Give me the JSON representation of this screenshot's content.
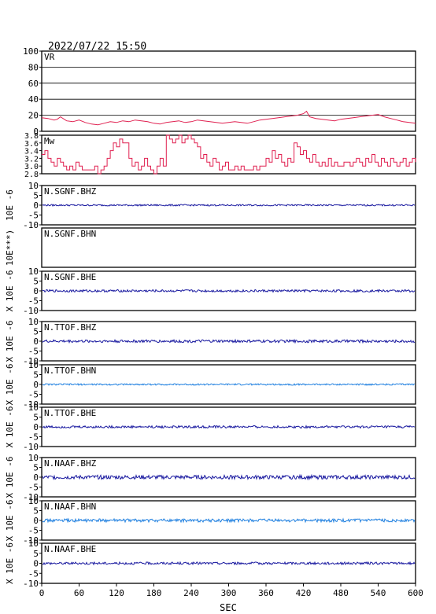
{
  "header": {
    "timestamp": "2022/07/22 15:50"
  },
  "x_axis": {
    "label": "SEC",
    "ticks": [
      "0",
      "60",
      "120",
      "180",
      "240",
      "300",
      "360",
      "420",
      "480",
      "540",
      "600"
    ],
    "range": [
      0,
      600
    ]
  },
  "colors": {
    "frame": "#000000",
    "vr": "#e02050",
    "mw": "#e02050",
    "dark_trace": "#1a1aa0",
    "light_trace": "#2080e0"
  },
  "chart_data": [
    {
      "type": "line",
      "panel_label": "VR",
      "ylim": [
        0,
        100
      ],
      "yticks": [
        "100",
        "80",
        "60",
        "40",
        "20",
        "0"
      ],
      "grid": true,
      "series": [
        {
          "x": [
            0,
            10,
            20,
            25,
            30,
            40,
            50,
            60,
            70,
            80,
            90,
            100,
            110,
            120,
            130,
            140,
            150,
            160,
            170,
            180,
            190,
            200,
            210,
            220,
            230,
            240,
            250,
            260,
            270,
            280,
            290,
            300,
            310,
            320,
            330,
            340,
            350,
            360,
            370,
            380,
            390,
            400,
            410,
            420,
            425,
            430,
            440,
            450,
            460,
            470,
            480,
            490,
            500,
            510,
            520,
            530,
            540,
            550,
            560,
            570,
            580,
            590,
            600
          ],
          "y": [
            17,
            16,
            14,
            15,
            18,
            13,
            12,
            14,
            11,
            9,
            8,
            10,
            12,
            11,
            13,
            12,
            14,
            13,
            12,
            10,
            9,
            11,
            12,
            13,
            11,
            12,
            14,
            13,
            12,
            11,
            10,
            11,
            12,
            11,
            10,
            12,
            14,
            15,
            16,
            17,
            18,
            19,
            20,
            22,
            25,
            18,
            16,
            15,
            14,
            13,
            15,
            16,
            17,
            18,
            19,
            20,
            21,
            18,
            16,
            14,
            12,
            11,
            10
          ]
        }
      ]
    },
    {
      "type": "line",
      "panel_label": "Mw",
      "ylim": [
        2.8,
        3.8
      ],
      "yticks": [
        "3.8",
        "3.6",
        "3.4",
        "3.2",
        "3.0",
        "2.8"
      ],
      "series": [
        {
          "x": [
            0,
            5,
            10,
            15,
            20,
            25,
            30,
            35,
            40,
            45,
            50,
            55,
            60,
            65,
            70,
            75,
            80,
            85,
            90,
            95,
            100,
            105,
            110,
            115,
            120,
            125,
            130,
            135,
            140,
            145,
            150,
            155,
            160,
            165,
            170,
            175,
            180,
            185,
            190,
            195,
            200,
            205,
            210,
            215,
            220,
            225,
            230,
            235,
            240,
            245,
            250,
            255,
            260,
            265,
            270,
            275,
            280,
            285,
            290,
            295,
            300,
            305,
            310,
            315,
            320,
            325,
            330,
            335,
            340,
            345,
            350,
            355,
            360,
            365,
            370,
            375,
            380,
            385,
            390,
            395,
            400,
            405,
            410,
            415,
            420,
            425,
            430,
            435,
            440,
            445,
            450,
            455,
            460,
            465,
            470,
            475,
            480,
            485,
            490,
            495,
            500,
            505,
            510,
            515,
            520,
            525,
            530,
            535,
            540,
            545,
            550,
            555,
            560,
            565,
            570,
            575,
            580,
            585,
            590,
            595,
            600
          ],
          "y": [
            3.3,
            3.4,
            3.2,
            3.1,
            3.0,
            3.2,
            3.1,
            3.0,
            2.9,
            3.0,
            2.9,
            3.1,
            3.0,
            2.9,
            2.9,
            2.9,
            2.9,
            3.0,
            2.8,
            2.9,
            3.0,
            3.2,
            3.4,
            3.6,
            3.5,
            3.7,
            3.6,
            3.6,
            3.2,
            3.0,
            3.1,
            2.9,
            3.0,
            3.2,
            3.0,
            2.9,
            2.8,
            3.0,
            3.2,
            3.0,
            3.8,
            3.7,
            3.6,
            3.7,
            3.8,
            3.6,
            3.7,
            3.8,
            3.7,
            3.6,
            3.5,
            3.2,
            3.3,
            3.1,
            3.0,
            3.2,
            3.1,
            2.9,
            3.0,
            3.1,
            2.9,
            2.9,
            3.0,
            2.9,
            3.0,
            2.9,
            2.9,
            2.9,
            3.0,
            2.9,
            3.0,
            3.0,
            3.2,
            3.1,
            3.4,
            3.2,
            3.3,
            3.1,
            3.0,
            3.2,
            3.1,
            3.6,
            3.5,
            3.3,
            3.4,
            3.2,
            3.1,
            3.3,
            3.1,
            3.0,
            3.1,
            3.0,
            3.2,
            3.0,
            3.1,
            3.0,
            3.0,
            3.1,
            3.1,
            3.0,
            3.1,
            3.2,
            3.1,
            3.0,
            3.2,
            3.1,
            3.3,
            3.1,
            3.0,
            3.2,
            3.1,
            3.0,
            3.2,
            3.1,
            3.0,
            3.1,
            3.2,
            3.0,
            3.1,
            3.2,
            3.1
          ]
        }
      ]
    },
    {
      "type": "line",
      "panel_label": "N.SGNF.BHZ",
      "unit_label": "10E -6",
      "ylim": [
        -10,
        10
      ],
      "yticks": [
        "10",
        "5",
        "0",
        "-5",
        "-10"
      ],
      "trace": "dark",
      "noise_amplitude": 0.4,
      "has_data": true
    },
    {
      "type": "line",
      "panel_label": "N.SGNF.BHN",
      "unit_label": "10E***)",
      "ylim": null,
      "yticks": [],
      "trace": "none",
      "noise_amplitude": 0,
      "has_data": false
    },
    {
      "type": "line",
      "panel_label": "N.SGNF.BHE",
      "unit_label": "X 10E -6",
      "ylim": [
        -10,
        10
      ],
      "yticks": [
        "10",
        "5",
        "0",
        "-5",
        "-10"
      ],
      "trace": "dark",
      "noise_amplitude": 0.6,
      "has_data": true
    },
    {
      "type": "line",
      "panel_label": "N.TTOF.BHZ",
      "unit_label": "X 10E -6",
      "ylim": [
        -10,
        10
      ],
      "yticks": [
        "10",
        "5",
        "0",
        "-5",
        "-10"
      ],
      "trace": "dark",
      "noise_amplitude": 0.7,
      "has_data": true
    },
    {
      "type": "line",
      "panel_label": "N.TTOF.BHN",
      "unit_label": "X 10E -6",
      "ylim": [
        -10,
        10
      ],
      "yticks": [
        "10",
        "5",
        "0",
        "-5",
        "-10"
      ],
      "trace": "light",
      "noise_amplitude": 0.4,
      "has_data": true
    },
    {
      "type": "line",
      "panel_label": "N.TTOF.BHE",
      "unit_label": "X 10E -6",
      "ylim": [
        -10,
        10
      ],
      "yticks": [
        "10",
        "5",
        "0",
        "-5",
        "-10"
      ],
      "trace": "dark",
      "noise_amplitude": 0.6,
      "has_data": true
    },
    {
      "type": "line",
      "panel_label": "N.NAAF.BHZ",
      "unit_label": "X 10E -6",
      "ylim": [
        -10,
        10
      ],
      "yticks": [
        "10",
        "5",
        "0",
        "-5",
        "-10"
      ],
      "trace": "dark",
      "noise_amplitude": 1.0,
      "has_data": true
    },
    {
      "type": "line",
      "panel_label": "N.NAAF.BHN",
      "unit_label": "X 10E -6",
      "ylim": [
        -10,
        10
      ],
      "yticks": [
        "10",
        "5",
        "0",
        "-5",
        "-10"
      ],
      "trace": "light",
      "noise_amplitude": 0.8,
      "has_data": true
    },
    {
      "type": "line",
      "panel_label": "N.NAAF.BHE",
      "unit_label": "X 10E -6",
      "ylim": [
        -10,
        10
      ],
      "yticks": [
        "10",
        "5",
        "0",
        "-5",
        "-10"
      ],
      "trace": "dark",
      "noise_amplitude": 0.6,
      "has_data": true
    }
  ]
}
